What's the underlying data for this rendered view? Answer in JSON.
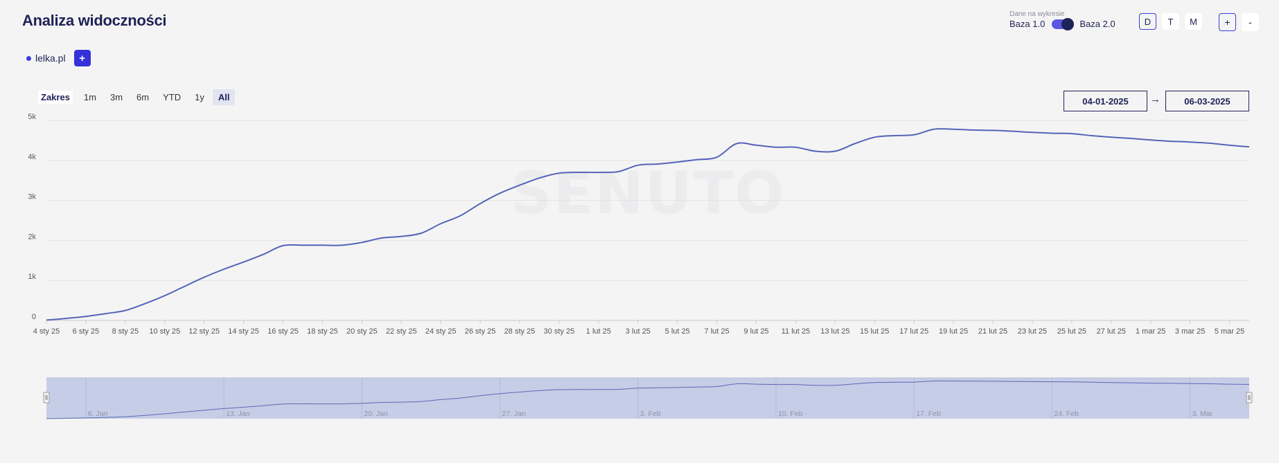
{
  "header": {
    "title": "Analiza widoczności"
  },
  "legend": {
    "domain": "lelka.pl",
    "add_label": "+"
  },
  "data_source": {
    "caption": "Dane na wykresie",
    "option_a": "Baza 1.0",
    "option_b": "Baza 2.0",
    "selected": "Baza 2.0"
  },
  "period_buttons": [
    {
      "label": "D",
      "active": true
    },
    {
      "label": "T",
      "active": false
    },
    {
      "label": "M",
      "active": false
    }
  ],
  "zoom_buttons": {
    "plus": "+",
    "minus": "-"
  },
  "range_selector": {
    "label": "Zakres",
    "buttons": [
      {
        "label": "1m"
      },
      {
        "label": "3m"
      },
      {
        "label": "6m"
      },
      {
        "label": "YTD"
      },
      {
        "label": "1y"
      },
      {
        "label": "All",
        "active": true
      }
    ]
  },
  "date_range": {
    "from": "04-01-2025",
    "to": "06-03-2025",
    "arrow": "→"
  },
  "watermark": "SENUTO",
  "chart_data": {
    "type": "line",
    "title": "",
    "xlabel": "",
    "ylabel": "",
    "ylim": [
      0,
      5000
    ],
    "yticks": [
      0,
      1000,
      2000,
      3000,
      4000,
      5000
    ],
    "ytick_labels": [
      "0",
      "1k",
      "2k",
      "3k",
      "4k",
      "5k"
    ],
    "grid": true,
    "x_start": "2025-01-04",
    "x_end": "2025-03-06",
    "x_tick_labels": [
      "4 sty 25",
      "6 sty 25",
      "8 sty 25",
      "10 sty 25",
      "12 sty 25",
      "14 sty 25",
      "16 sty 25",
      "18 sty 25",
      "20 sty 25",
      "22 sty 25",
      "24 sty 25",
      "26 sty 25",
      "28 sty 25",
      "30 sty 25",
      "1 lut 25",
      "3 lut 25",
      "5 lut 25",
      "7 lut 25",
      "9 lut 25",
      "11 lut 25",
      "13 lut 25",
      "15 lut 25",
      "17 lut 25",
      "19 lut 25",
      "21 lut 25",
      "23 lut 25",
      "25 lut 25",
      "27 lut 25",
      "1 mar 25",
      "3 mar 25",
      "5 mar 25"
    ],
    "series": [
      {
        "name": "lelka.pl",
        "color": "#5563b8",
        "x": [
          "2025-01-04",
          "2025-01-05",
          "2025-01-06",
          "2025-01-07",
          "2025-01-08",
          "2025-01-09",
          "2025-01-10",
          "2025-01-11",
          "2025-01-12",
          "2025-01-13",
          "2025-01-14",
          "2025-01-15",
          "2025-01-16",
          "2025-01-17",
          "2025-01-18",
          "2025-01-19",
          "2025-01-20",
          "2025-01-21",
          "2025-01-22",
          "2025-01-23",
          "2025-01-24",
          "2025-01-25",
          "2025-01-26",
          "2025-01-27",
          "2025-01-28",
          "2025-01-29",
          "2025-01-30",
          "2025-01-31",
          "2025-02-01",
          "2025-02-02",
          "2025-02-03",
          "2025-02-04",
          "2025-02-05",
          "2025-02-06",
          "2025-02-07",
          "2025-02-08",
          "2025-02-09",
          "2025-02-10",
          "2025-02-11",
          "2025-02-12",
          "2025-02-13",
          "2025-02-14",
          "2025-02-15",
          "2025-02-16",
          "2025-02-17",
          "2025-02-18",
          "2025-02-19",
          "2025-02-20",
          "2025-02-21",
          "2025-02-22",
          "2025-02-23",
          "2025-02-24",
          "2025-02-25",
          "2025-02-26",
          "2025-02-27",
          "2025-02-28",
          "2025-03-01",
          "2025-03-02",
          "2025-03-03",
          "2025-03-04",
          "2025-03-05",
          "2025-03-06"
        ],
        "values": [
          10,
          50,
          100,
          170,
          250,
          420,
          620,
          850,
          1080,
          1280,
          1460,
          1650,
          1870,
          1880,
          1880,
          1880,
          1950,
          2060,
          2100,
          2180,
          2420,
          2620,
          2920,
          3180,
          3380,
          3560,
          3680,
          3700,
          3700,
          3720,
          3880,
          3910,
          3960,
          4020,
          4080,
          4420,
          4380,
          4330,
          4330,
          4230,
          4230,
          4420,
          4580,
          4620,
          4640,
          4780,
          4780,
          4760,
          4750,
          4730,
          4700,
          4680,
          4670,
          4620,
          4580,
          4550,
          4510,
          4480,
          4460,
          4430,
          4380,
          4340
        ]
      }
    ],
    "navigator": {
      "tick_labels": [
        "6. Jan",
        "13. Jan",
        "20. Jan",
        "27. Jan",
        "3. Feb",
        "10. Feb",
        "17. Feb",
        "24. Feb",
        "3. Mar"
      ]
    }
  }
}
